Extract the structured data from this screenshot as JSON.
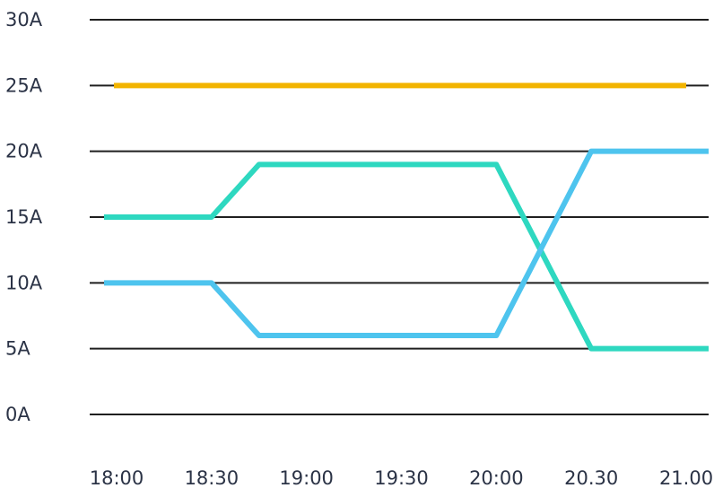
{
  "chart_data": {
    "type": "line",
    "title": "",
    "xlabel": "",
    "ylabel": "",
    "categories": [
      "18:00",
      "18:30",
      "19:00",
      "19:30",
      "20:00",
      "20.30",
      "21.00"
    ],
    "y_ticks": [
      "0A",
      "5A",
      "10A",
      "15A",
      "20A",
      "25A",
      "30A"
    ],
    "ylim": [
      0,
      30
    ],
    "grid": "horizontal",
    "legend": "none",
    "series": [
      {
        "color": "#F2B400",
        "x": [
          "18:00",
          "21.00"
        ],
        "values": [
          25,
          25
        ]
      },
      {
        "color": "#2ED8C0",
        "x": [
          "18:00",
          "18:30",
          "18:45",
          "19:00",
          "19:30",
          "20:00",
          "20.30",
          "21.00"
        ],
        "values": [
          15,
          15,
          19,
          19,
          19,
          19,
          5,
          5
        ]
      },
      {
        "color": "#4EC4EE",
        "x": [
          "18:00",
          "18:30",
          "18:45",
          "19:00",
          "19:30",
          "20:00",
          "20.30",
          "21.00"
        ],
        "values": [
          10,
          10,
          6,
          6,
          6,
          6,
          20,
          20
        ]
      }
    ]
  }
}
